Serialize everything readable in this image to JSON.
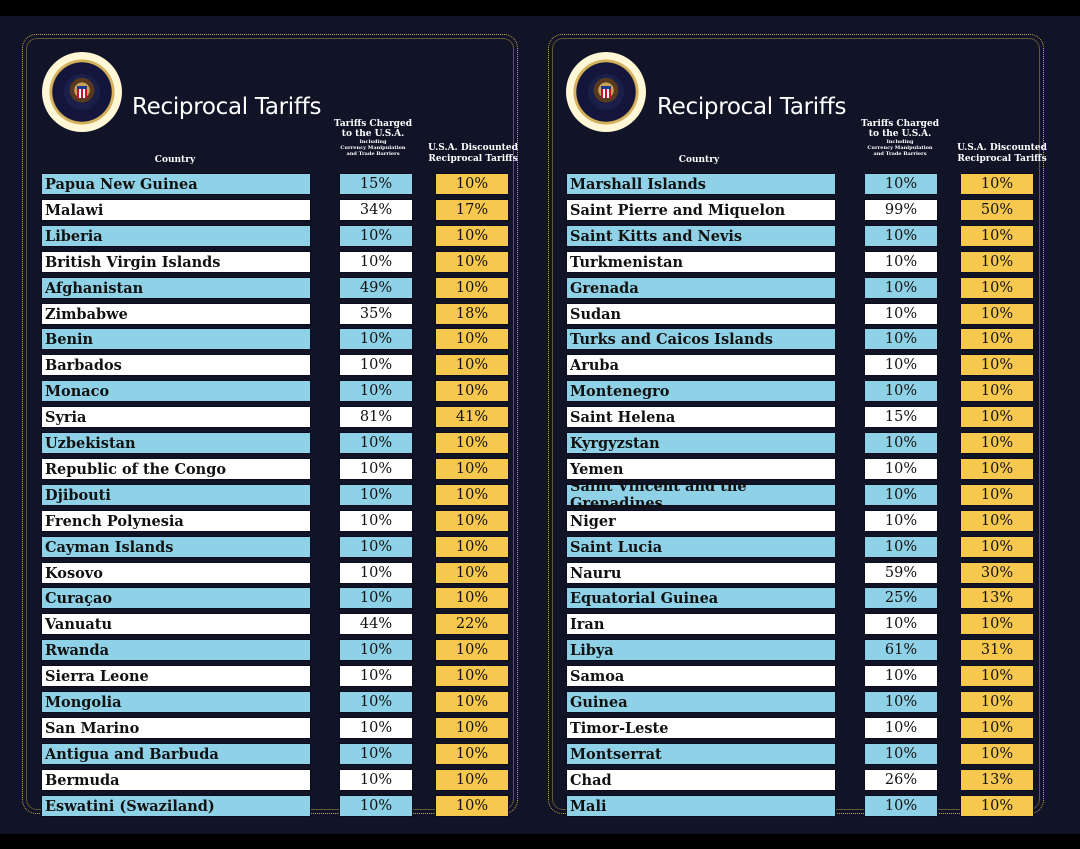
{
  "title": "Reciprocal Tariffs",
  "headers": {
    "country": "Country",
    "charged_line1": "Tariffs Charged",
    "charged_line2": "to the U.S.A.",
    "charged_line3": "Including",
    "charged_line4": "Currency Manipulation",
    "charged_line5": "and Trade Barriers",
    "discount_line1": "U.S.A. Discounted",
    "discount_line2": "Reciprocal Tariffs"
  },
  "colors": {
    "row_blue": "#8fd1e6",
    "row_white": "#ffffff",
    "discount_gold": "#f6c84e",
    "background": "#111326",
    "border_gold": "#c9a84d"
  },
  "left_table": {
    "rows": [
      {
        "country": "Papua New Guinea",
        "charged": "15%",
        "discounted": "10%"
      },
      {
        "country": "Malawi",
        "charged": "34%",
        "discounted": "17%"
      },
      {
        "country": "Liberia",
        "charged": "10%",
        "discounted": "10%"
      },
      {
        "country": "British Virgin Islands",
        "charged": "10%",
        "discounted": "10%"
      },
      {
        "country": "Afghanistan",
        "charged": "49%",
        "discounted": "10%"
      },
      {
        "country": "Zimbabwe",
        "charged": "35%",
        "discounted": "18%"
      },
      {
        "country": "Benin",
        "charged": "10%",
        "discounted": "10%"
      },
      {
        "country": "Barbados",
        "charged": "10%",
        "discounted": "10%"
      },
      {
        "country": "Monaco",
        "charged": "10%",
        "discounted": "10%"
      },
      {
        "country": "Syria",
        "charged": "81%",
        "discounted": "41%"
      },
      {
        "country": "Uzbekistan",
        "charged": "10%",
        "discounted": "10%"
      },
      {
        "country": "Republic of the Congo",
        "charged": "10%",
        "discounted": "10%"
      },
      {
        "country": "Djibouti",
        "charged": "10%",
        "discounted": "10%"
      },
      {
        "country": "French Polynesia",
        "charged": "10%",
        "discounted": "10%"
      },
      {
        "country": "Cayman Islands",
        "charged": "10%",
        "discounted": "10%"
      },
      {
        "country": "Kosovo",
        "charged": "10%",
        "discounted": "10%"
      },
      {
        "country": "Curaçao",
        "charged": "10%",
        "discounted": "10%"
      },
      {
        "country": "Vanuatu",
        "charged": "44%",
        "discounted": "22%"
      },
      {
        "country": "Rwanda",
        "charged": "10%",
        "discounted": "10%"
      },
      {
        "country": "Sierra Leone",
        "charged": "10%",
        "discounted": "10%"
      },
      {
        "country": "Mongolia",
        "charged": "10%",
        "discounted": "10%"
      },
      {
        "country": "San Marino",
        "charged": "10%",
        "discounted": "10%"
      },
      {
        "country": "Antigua and Barbuda",
        "charged": "10%",
        "discounted": "10%"
      },
      {
        "country": "Bermuda",
        "charged": "10%",
        "discounted": "10%"
      },
      {
        "country": "Eswatini (Swaziland)",
        "charged": "10%",
        "discounted": "10%"
      }
    ]
  },
  "right_table": {
    "rows": [
      {
        "country": "Marshall Islands",
        "charged": "10%",
        "discounted": "10%"
      },
      {
        "country": "Saint Pierre and Miquelon",
        "charged": "99%",
        "discounted": "50%"
      },
      {
        "country": "Saint Kitts and Nevis",
        "charged": "10%",
        "discounted": "10%"
      },
      {
        "country": "Turkmenistan",
        "charged": "10%",
        "discounted": "10%"
      },
      {
        "country": "Grenada",
        "charged": "10%",
        "discounted": "10%"
      },
      {
        "country": "Sudan",
        "charged": "10%",
        "discounted": "10%"
      },
      {
        "country": "Turks and Caicos Islands",
        "charged": "10%",
        "discounted": "10%"
      },
      {
        "country": "Aruba",
        "charged": "10%",
        "discounted": "10%"
      },
      {
        "country": "Montenegro",
        "charged": "10%",
        "discounted": "10%"
      },
      {
        "country": "Saint Helena",
        "charged": "15%",
        "discounted": "10%"
      },
      {
        "country": "Kyrgyzstan",
        "charged": "10%",
        "discounted": "10%"
      },
      {
        "country": "Yemen",
        "charged": "10%",
        "discounted": "10%"
      },
      {
        "country": "Saint Vincent and the Grenadines",
        "charged": "10%",
        "discounted": "10%"
      },
      {
        "country": "Niger",
        "charged": "10%",
        "discounted": "10%"
      },
      {
        "country": "Saint Lucia",
        "charged": "10%",
        "discounted": "10%"
      },
      {
        "country": "Nauru",
        "charged": "59%",
        "discounted": "30%"
      },
      {
        "country": "Equatorial Guinea",
        "charged": "25%",
        "discounted": "13%"
      },
      {
        "country": "Iran",
        "charged": "10%",
        "discounted": "10%"
      },
      {
        "country": "Libya",
        "charged": "61%",
        "discounted": "31%"
      },
      {
        "country": "Samoa",
        "charged": "10%",
        "discounted": "10%"
      },
      {
        "country": "Guinea",
        "charged": "10%",
        "discounted": "10%"
      },
      {
        "country": "Timor-Leste",
        "charged": "10%",
        "discounted": "10%"
      },
      {
        "country": "Montserrat",
        "charged": "10%",
        "discounted": "10%"
      },
      {
        "country": "Chad",
        "charged": "26%",
        "discounted": "13%"
      },
      {
        "country": "Mali",
        "charged": "10%",
        "discounted": "10%"
      }
    ]
  }
}
